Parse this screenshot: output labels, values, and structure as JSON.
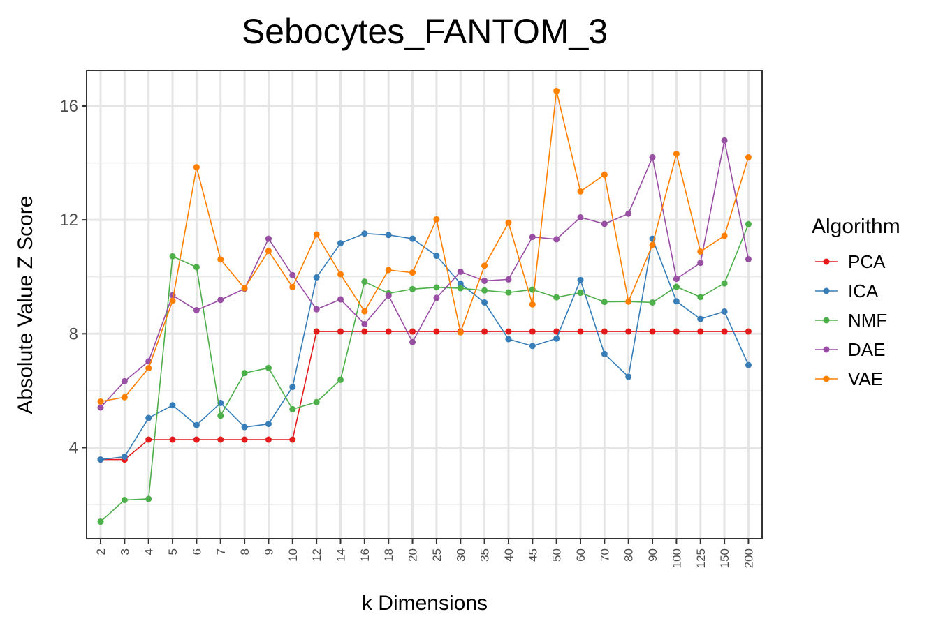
{
  "chart_data": {
    "type": "line",
    "title": "Sebocytes_FANTOM_3",
    "xlabel": "k Dimensions",
    "ylabel": "Absolute Value Z Score",
    "ylim": [
      0.8,
      17.25
    ],
    "yticks": [
      4,
      8,
      12,
      16
    ],
    "grid": true,
    "legend_title": "Algorithm",
    "legend_position": "right",
    "categories": [
      "2",
      "3",
      "4",
      "5",
      "6",
      "7",
      "8",
      "9",
      "10",
      "12",
      "14",
      "16",
      "18",
      "20",
      "25",
      "30",
      "35",
      "40",
      "45",
      "50",
      "60",
      "70",
      "80",
      "90",
      "100",
      "125",
      "150",
      "200"
    ],
    "series": [
      {
        "name": "PCA",
        "color": "#E41A1C",
        "values": [
          3.58,
          3.58,
          4.28,
          4.28,
          4.28,
          4.28,
          4.28,
          4.28,
          4.28,
          8.08,
          8.08,
          8.08,
          8.08,
          8.08,
          8.08,
          8.08,
          8.08,
          8.08,
          8.08,
          8.08,
          8.08,
          8.08,
          8.08,
          8.08,
          8.08,
          8.08,
          8.08,
          8.08
        ]
      },
      {
        "name": "ICA",
        "color": "#377EB8",
        "values": [
          3.58,
          3.68,
          5.04,
          5.49,
          4.79,
          5.57,
          4.72,
          4.83,
          6.13,
          9.98,
          11.18,
          11.52,
          11.47,
          11.34,
          10.74,
          9.76,
          9.1,
          7.81,
          7.57,
          7.83,
          9.89,
          7.29,
          6.49,
          11.34,
          9.14,
          8.52,
          8.78,
          6.9
        ]
      },
      {
        "name": "NMF",
        "color": "#4DAF4A",
        "values": [
          1.4,
          2.16,
          2.2,
          10.72,
          10.34,
          5.12,
          6.62,
          6.8,
          5.35,
          5.6,
          6.38,
          9.83,
          9.42,
          9.57,
          9.63,
          9.6,
          9.52,
          9.45,
          9.55,
          9.28,
          9.44,
          9.12,
          9.13,
          9.1,
          9.65,
          9.29,
          9.77,
          11.85
        ]
      },
      {
        "name": "DAE",
        "color": "#984EA3",
        "values": [
          5.41,
          6.33,
          7.03,
          9.35,
          8.83,
          9.19,
          9.58,
          11.34,
          10.06,
          8.86,
          9.21,
          8.34,
          9.34,
          7.71,
          9.26,
          10.18,
          9.86,
          9.91,
          11.4,
          11.32,
          12.09,
          11.86,
          12.22,
          14.2,
          9.93,
          10.49,
          14.79,
          10.62
        ]
      },
      {
        "name": "VAE",
        "color": "#FF7F00",
        "values": [
          5.62,
          5.77,
          6.79,
          9.16,
          13.85,
          10.61,
          9.6,
          10.91,
          9.64,
          11.49,
          10.09,
          8.79,
          10.24,
          10.15,
          12.02,
          8.05,
          10.39,
          11.9,
          9.03,
          16.53,
          13.0,
          13.59,
          9.13,
          11.12,
          14.32,
          10.89,
          11.44,
          14.2
        ]
      }
    ]
  }
}
